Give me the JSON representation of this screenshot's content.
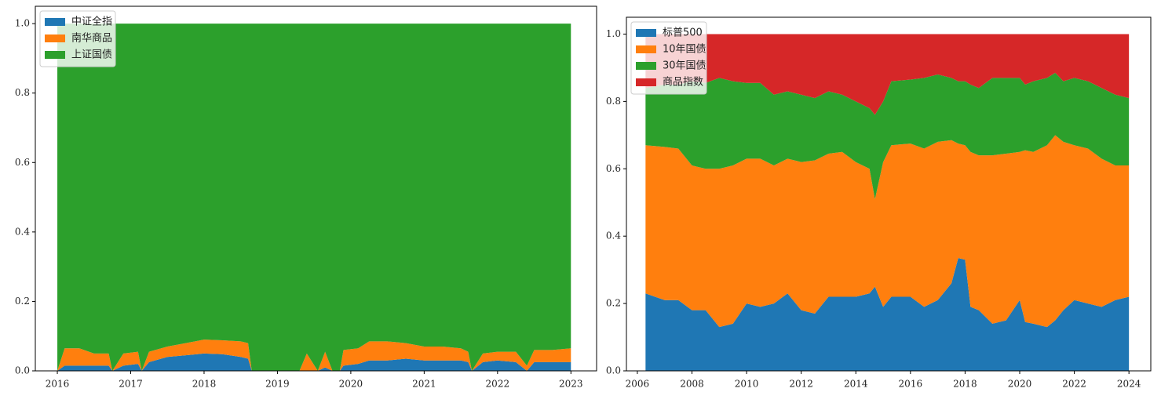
{
  "chart_data": [
    {
      "type": "stackedarea",
      "legend": "upper left",
      "x": [
        2016.0,
        2016.1,
        2016.3,
        2016.5,
        2016.7,
        2016.75,
        2016.9,
        2017.1,
        2017.15,
        2017.25,
        2017.5,
        2017.75,
        2018.0,
        2018.25,
        2018.5,
        2018.6,
        2018.65,
        2019.3,
        2019.4,
        2019.55,
        2019.65,
        2019.75,
        2019.85,
        2019.9,
        2020.1,
        2020.25,
        2020.5,
        2020.75,
        2021.0,
        2021.25,
        2021.5,
        2021.6,
        2021.65,
        2021.8,
        2022.0,
        2022.25,
        2022.4,
        2022.5,
        2022.75,
        2023.0
      ],
      "series": [
        {
          "name": "中证全指",
          "color": "#1f77b4",
          "values": [
            0,
            0.015,
            0.015,
            0.015,
            0.015,
            0,
            0.015,
            0.02,
            0,
            0.025,
            0.04,
            0.045,
            0.05,
            0.048,
            0.04,
            0.035,
            0,
            0,
            0,
            0,
            0.01,
            0,
            0,
            0.015,
            0.02,
            0.03,
            0.03,
            0.035,
            0.03,
            0.03,
            0.03,
            0.025,
            0,
            0.025,
            0.03,
            0.025,
            0,
            0.025,
            0.025,
            0.025
          ]
        },
        {
          "name": "南华商品",
          "color": "#ff7f0e",
          "values": [
            0,
            0.05,
            0.05,
            0.035,
            0.035,
            0,
            0.035,
            0.035,
            0,
            0.03,
            0.03,
            0.035,
            0.04,
            0.04,
            0.045,
            0.045,
            0,
            0,
            0.05,
            0,
            0.045,
            0,
            0,
            0.045,
            0.045,
            0.055,
            0.055,
            0.045,
            0.04,
            0.04,
            0.035,
            0.03,
            0,
            0.025,
            0.025,
            0.03,
            0.015,
            0.035,
            0.035,
            0.04
          ]
        },
        {
          "name": "上证国债",
          "color": "#2ca02c",
          "values": [
            1,
            0.935,
            0.935,
            0.95,
            0.95,
            1,
            0.95,
            0.945,
            1,
            0.945,
            0.93,
            0.92,
            0.91,
            0.912,
            0.915,
            0.92,
            1,
            1,
            0.95,
            1,
            0.945,
            1,
            1,
            0.94,
            0.935,
            0.915,
            0.915,
            0.92,
            0.93,
            0.93,
            0.935,
            0.945,
            1,
            0.95,
            0.945,
            0.945,
            0.985,
            0.94,
            0.94,
            0.935
          ]
        }
      ],
      "xlim": [
        2015.7,
        2023.35
      ],
      "xticks": [
        2016,
        2017,
        2018,
        2019,
        2020,
        2021,
        2022,
        2023
      ],
      "ylim": [
        0,
        1.05
      ],
      "yticks": [
        {
          "value": 0,
          "label": "0.0"
        },
        {
          "value": 0.2,
          "label": "0.2"
        },
        {
          "value": 0.4,
          "label": "0.4"
        },
        {
          "value": 0.6,
          "label": "0.6"
        },
        {
          "value": 0.8,
          "label": "0.8"
        },
        {
          "value": 1,
          "label": "1.0"
        }
      ]
    },
    {
      "type": "stackedarea",
      "legend": "upper left",
      "x": [
        2006.3,
        2007,
        2007.5,
        2008,
        2008.5,
        2009,
        2009.5,
        2010,
        2010.5,
        2011,
        2011.5,
        2012,
        2012.5,
        2013,
        2013.5,
        2014,
        2014.5,
        2014.7,
        2015,
        2015.3,
        2016,
        2016.5,
        2017,
        2017.5,
        2017.75,
        2018,
        2018.2,
        2018.5,
        2019,
        2019.5,
        2020,
        2020.2,
        2020.5,
        2021,
        2021.3,
        2021.6,
        2022,
        2022.5,
        2023,
        2023.5,
        2024
      ],
      "series": [
        {
          "name": "标普500",
          "color": "#1f77b4",
          "values": [
            0.23,
            0.21,
            0.21,
            0.18,
            0.18,
            0.13,
            0.14,
            0.2,
            0.19,
            0.2,
            0.23,
            0.18,
            0.17,
            0.22,
            0.22,
            0.22,
            0.23,
            0.25,
            0.19,
            0.22,
            0.22,
            0.19,
            0.21,
            0.26,
            0.335,
            0.33,
            0.19,
            0.18,
            0.14,
            0.15,
            0.21,
            0.145,
            0.14,
            0.13,
            0.15,
            0.18,
            0.21,
            0.2,
            0.19,
            0.21,
            0.22
          ]
        },
        {
          "name": "10年国债",
          "color": "#ff7f0e",
          "values": [
            0.44,
            0.455,
            0.45,
            0.43,
            0.42,
            0.47,
            0.47,
            0.43,
            0.44,
            0.41,
            0.4,
            0.44,
            0.455,
            0.425,
            0.43,
            0.4,
            0.37,
            0.26,
            0.43,
            0.45,
            0.455,
            0.47,
            0.47,
            0.425,
            0.34,
            0.34,
            0.46,
            0.46,
            0.5,
            0.495,
            0.44,
            0.51,
            0.51,
            0.54,
            0.55,
            0.5,
            0.46,
            0.46,
            0.44,
            0.4,
            0.39
          ]
        },
        {
          "name": "30年国债",
          "color": "#2ca02c",
          "values": [
            0.17,
            0.185,
            0.19,
            0.25,
            0.255,
            0.27,
            0.25,
            0.225,
            0.225,
            0.21,
            0.2,
            0.2,
            0.185,
            0.185,
            0.17,
            0.18,
            0.18,
            0.25,
            0.18,
            0.19,
            0.19,
            0.21,
            0.2,
            0.185,
            0.185,
            0.19,
            0.2,
            0.2,
            0.23,
            0.225,
            0.22,
            0.195,
            0.21,
            0.2,
            0.185,
            0.18,
            0.2,
            0.2,
            0.21,
            0.21,
            0.2
          ]
        },
        {
          "name": "商品指数",
          "color": "#d62728",
          "values": [
            0.16,
            0.15,
            0.15,
            0.14,
            0.145,
            0.13,
            0.14,
            0.145,
            0.145,
            0.18,
            0.17,
            0.18,
            0.19,
            0.17,
            0.18,
            0.2,
            0.22,
            0.24,
            0.2,
            0.14,
            0.135,
            0.13,
            0.12,
            0.13,
            0.14,
            0.14,
            0.15,
            0.16,
            0.13,
            0.13,
            0.13,
            0.15,
            0.14,
            0.13,
            0.115,
            0.14,
            0.13,
            0.14,
            0.16,
            0.18,
            0.19
          ]
        }
      ],
      "xlim": [
        2005.6,
        2024.8
      ],
      "xticks": [
        2006,
        2008,
        2010,
        2012,
        2014,
        2016,
        2018,
        2020,
        2022,
        2024
      ],
      "ylim": [
        0,
        1.05
      ],
      "yticks": [
        {
          "value": 0,
          "label": "0.0"
        },
        {
          "value": 0.2,
          "label": "0.2"
        },
        {
          "value": 0.4,
          "label": "0.4"
        },
        {
          "value": 0.6,
          "label": "0.6"
        },
        {
          "value": 0.8,
          "label": "0.8"
        },
        {
          "value": 1,
          "label": "1.0"
        }
      ]
    }
  ]
}
